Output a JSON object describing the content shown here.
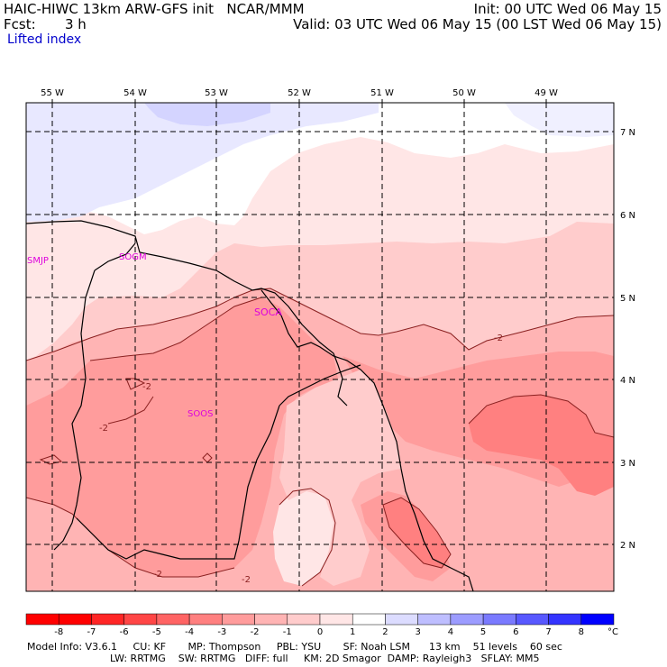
{
  "header": {
    "model": "HAIC-HIWC 13km ARW-GFS init   NCAR/MMM",
    "fcst_label": "Fcst:",
    "fcst_value": "3 h",
    "field": "Lifted index",
    "init": "Init: 00 UTC Wed 06 May 15",
    "valid": "Valid: 03 UTC Wed 06 May 15 (00 LST Wed 06 May 15)"
  },
  "map": {
    "lon_labels": [
      "55 W",
      "54 W",
      "53 W",
      "52 W",
      "51 W",
      "50 W",
      "49 W"
    ],
    "lat_labels": [
      "7 N",
      "6 N",
      "5 N",
      "4 N",
      "3 N",
      "2 N"
    ],
    "stations": [
      "SMJP",
      "SOGM",
      "SOCA",
      "SOOS"
    ],
    "contour_labels": [
      "-2",
      "-2",
      "-2",
      "-2",
      "-2"
    ]
  },
  "colorbar": {
    "ticks": [
      "-8",
      "-7",
      "-6",
      "-5",
      "-4",
      "-3",
      "-2",
      "-1",
      "0",
      "1",
      "2",
      "3",
      "4",
      "5",
      "6",
      "7",
      "8"
    ],
    "unit": "°C",
    "colors": [
      "#ff0000",
      "#ff2626",
      "#ff4646",
      "#ff6464",
      "#ff8080",
      "#ff9c9c",
      "#ffb4b4",
      "#ffcccc",
      "#ffe6e6",
      "#ffffff",
      "#dcdcff",
      "#bebeff",
      "#9c9cff",
      "#7a7aff",
      "#5858ff",
      "#3434ff",
      "#0000ff"
    ]
  },
  "footer": {
    "line1": "Model Info: V3.6.1     CU: KF       MP: Thompson     PBL: YSU       SF: Noah LSM      13 km    51 levels    60 sec",
    "line2": "LW: RRTMG    SW: RRTMG   DIFF: full     KM: 2D Smagor  DAMP: Rayleigh3   SFLAY: MM5"
  }
}
